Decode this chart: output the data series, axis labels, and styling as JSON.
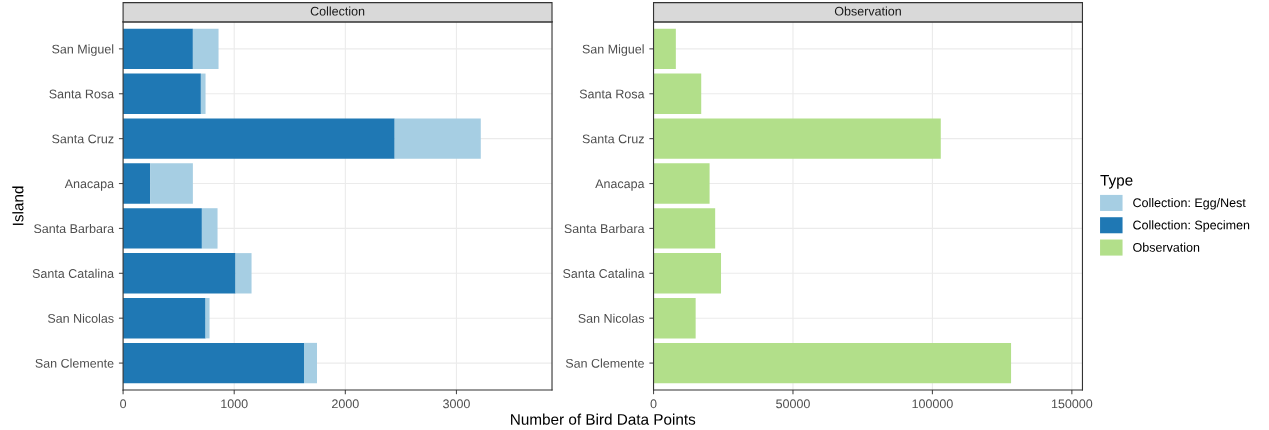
{
  "chart_data": [
    {
      "type": "bar",
      "title": "Collection",
      "orientation": "horizontal",
      "stacked": true,
      "legend": "right",
      "ylabel": "Island",
      "xlabel": "Number of Bird Data Points",
      "categories": [
        "San Miguel",
        "Santa Rosa",
        "Santa Cruz",
        "Anacapa",
        "Santa Barbara",
        "Santa Catalina",
        "San Nicolas",
        "San Clemente"
      ],
      "series": [
        {
          "name": "Collection: Specimen",
          "color": "#1f78b4",
          "values": [
            628,
            700,
            2444,
            243,
            709,
            1012,
            742,
            1628
          ]
        },
        {
          "name": "Collection: Egg/Nest",
          "color": "#a6cee3",
          "values": [
            231,
            42,
            775,
            385,
            141,
            144,
            36,
            117
          ]
        }
      ],
      "xlim": [
        0,
        3860
      ],
      "xticks": [
        0,
        1000,
        2000,
        3000
      ],
      "grid": true
    },
    {
      "type": "bar",
      "title": "Observation",
      "orientation": "horizontal",
      "legend": "right",
      "legend_title": "Type",
      "categories": [
        "San Miguel",
        "Santa Rosa",
        "Santa Cruz",
        "Anacapa",
        "Santa Barbara",
        "Santa Catalina",
        "San Nicolas",
        "San Clemente"
      ],
      "series": [
        {
          "name": "Observation",
          "color": "#b2df8a",
          "values": [
            8000,
            17100,
            103000,
            20100,
            22100,
            24200,
            15100,
            128200
          ]
        }
      ],
      "xlim": [
        0,
        153800
      ],
      "xticks": [
        0,
        50000,
        100000,
        150000
      ],
      "grid": true
    }
  ]
}
